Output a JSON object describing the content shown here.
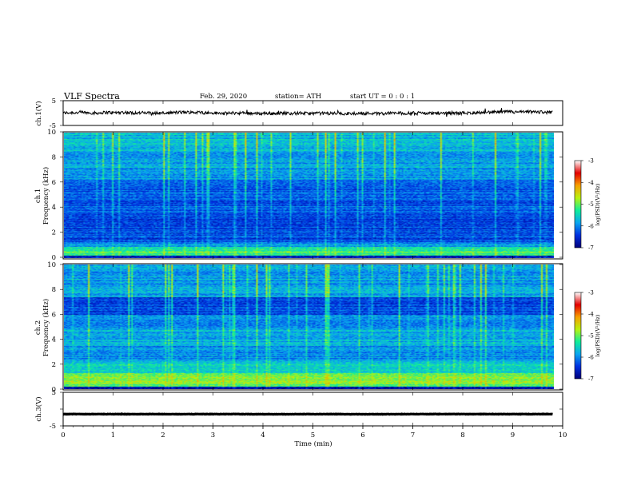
{
  "header": {
    "title": "VLF  Spectra",
    "date": "Feb. 29, 2020",
    "station": "station= ATH",
    "start": "start  UT  =    0  : 0   : 1"
  },
  "chart_data": [
    {
      "type": "line",
      "panel": "ch1-waveform",
      "ylabel": "ch.1(V)",
      "ylim": [
        -5,
        5
      ],
      "yticks": [
        "5",
        "-5"
      ],
      "xlim": [
        0,
        10
      ],
      "series": [
        {
          "baseline": 0.0,
          "amplitude": 0.8
        }
      ]
    },
    {
      "type": "heatmap",
      "panel": "ch1-spectrogram",
      "ylabel_channel": "ch.1",
      "ylabel": "Frequency  (kHz)",
      "ylim": [
        0,
        10
      ],
      "yticks": [
        "0",
        "2",
        "4",
        "6",
        "8",
        "10"
      ],
      "xlim": [
        0,
        9.8
      ],
      "colorbar": {
        "label": "log(PSD)(V²/Hz)",
        "range": [
          -7,
          -3
        ],
        "ticks": [
          "-3",
          "-4",
          "-5",
          "-6",
          "-7"
        ],
        "colors": [
          "#00007a",
          "#0030e0",
          "#0aa6f0",
          "#10ee9a",
          "#b8f210",
          "#f6a000",
          "#e40000",
          "#ffffff"
        ]
      }
    },
    {
      "type": "heatmap",
      "panel": "ch2-spectrogram",
      "ylabel_channel": "ch.2",
      "ylabel": "Frequency  (kHz)",
      "ylim": [
        0,
        10
      ],
      "yticks": [
        "0",
        "2",
        "4",
        "6",
        "8",
        "10"
      ],
      "xlim": [
        0,
        9.8
      ],
      "colorbar": {
        "label": "log(PSD)(V²/Hz)",
        "range": [
          -7,
          -3
        ],
        "ticks": [
          "-3",
          "-4",
          "-5",
          "-6",
          "-7"
        ],
        "colors": [
          "#00007a",
          "#0030e0",
          "#0aa6f0",
          "#10ee9a",
          "#b8f210",
          "#f6a000",
          "#e40000",
          "#ffffff"
        ]
      }
    },
    {
      "type": "line",
      "panel": "ch3-waveform",
      "ylabel": "ch.3(V)",
      "ylim": [
        -5,
        5
      ],
      "yticks": [
        "5",
        "0",
        "-5"
      ],
      "xlim": [
        0,
        10
      ],
      "series": [
        {
          "baseline": -1.5,
          "amplitude": 0.1
        }
      ]
    }
  ],
  "xaxis": {
    "label": "Time  (min)",
    "ticks": [
      "0",
      "1",
      "2",
      "3",
      "4",
      "5",
      "6",
      "7",
      "8",
      "9",
      "10"
    ]
  },
  "colors": {
    "line": "#000000",
    "background": "#ffffff"
  }
}
